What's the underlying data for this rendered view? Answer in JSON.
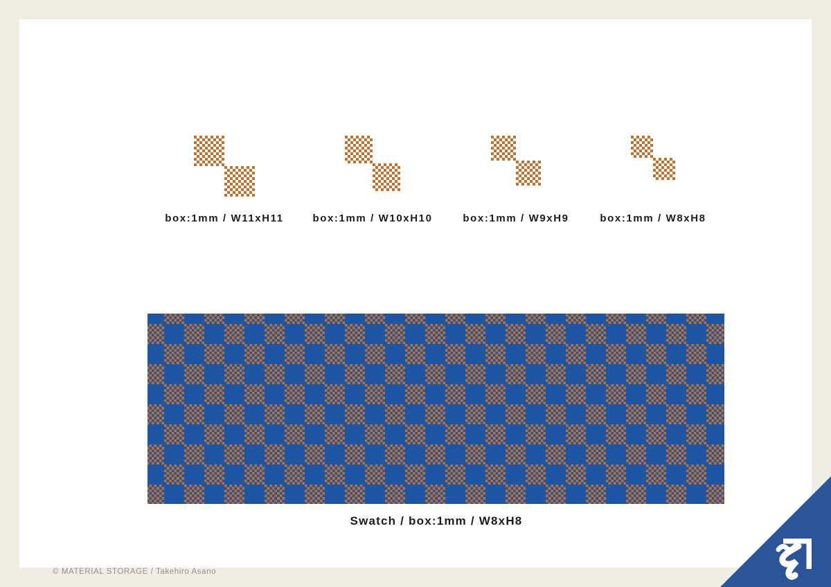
{
  "colors": {
    "page_background": "#F0EDE2",
    "card_background": "#FFFFFF",
    "pattern_orange": "#C2702C",
    "swatch_blue": "#1E56A3",
    "triangle_navy": "#2A5699",
    "label_text": "#1C1C1C",
    "credit_text": "#8F8F8F",
    "logo_white": "#FFFFFF"
  },
  "samples": [
    {
      "label": "box:1mm / W11xH11",
      "box_mm": 1,
      "cols": 11,
      "rows": 11
    },
    {
      "label": "box:1mm / W10xH10",
      "box_mm": 1,
      "cols": 10,
      "rows": 10
    },
    {
      "label": "box:1mm / W9xH9",
      "box_mm": 1,
      "cols": 9,
      "rows": 9
    },
    {
      "label": "box:1mm / W8xH8",
      "box_mm": 1,
      "cols": 8,
      "rows": 8
    }
  ],
  "swatch": {
    "label": "Swatch / box:1mm / W8xH8",
    "box_mm": 1,
    "cols": 8,
    "rows": 8
  },
  "footer": {
    "credit": "© MATERIAL STORAGE / Takehiro Asano"
  },
  "logo": {
    "icon": "material-storage-so-mark"
  }
}
